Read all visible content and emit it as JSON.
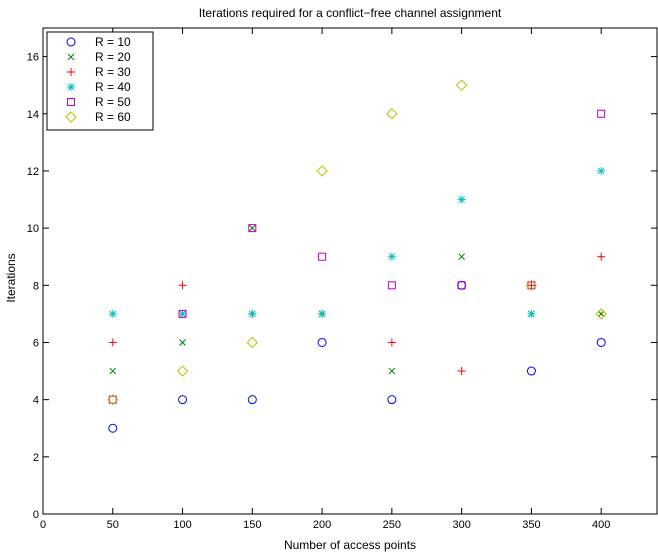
{
  "chart_data": {
    "type": "scatter",
    "title": "Iterations required for a conflict−free channel assignment",
    "xlabel": "Number of access points",
    "ylabel": "Iterations",
    "xlim": [
      0,
      440
    ],
    "ylim": [
      0,
      17
    ],
    "xticks": [
      0,
      50,
      100,
      150,
      200,
      250,
      300,
      350,
      400
    ],
    "yticks": [
      0,
      2,
      4,
      6,
      8,
      10,
      12,
      14,
      16
    ],
    "grid": false,
    "legend_position": "top-left",
    "x": [
      50,
      100,
      150,
      200,
      250,
      300,
      350,
      400
    ],
    "series": [
      {
        "name": "R = 10",
        "marker": "circle",
        "color": "#0000ff",
        "values": [
          3,
          4,
          4,
          6,
          4,
          8,
          5,
          6
        ]
      },
      {
        "name": "R = 20",
        "marker": "x",
        "color": "#008000",
        "values": [
          5,
          6,
          10,
          7,
          5,
          9,
          7,
          7
        ]
      },
      {
        "name": "R = 30",
        "marker": "plus",
        "color": "#ff0000",
        "values": [
          6,
          8,
          7,
          7,
          6,
          5,
          8,
          9
        ]
      },
      {
        "name": "R = 40",
        "marker": "star",
        "color": "#00bfbf",
        "values": [
          7,
          7,
          7,
          7,
          9,
          11,
          7,
          12
        ]
      },
      {
        "name": "R = 50",
        "marker": "square",
        "color": "#bf00bf",
        "values": [
          4,
          7,
          10,
          9,
          8,
          8,
          8,
          14
        ]
      },
      {
        "name": "R = 60",
        "marker": "diamond",
        "color": "#bfbf00",
        "values": [
          4,
          5,
          6,
          12,
          14,
          15,
          8,
          7
        ]
      }
    ]
  }
}
